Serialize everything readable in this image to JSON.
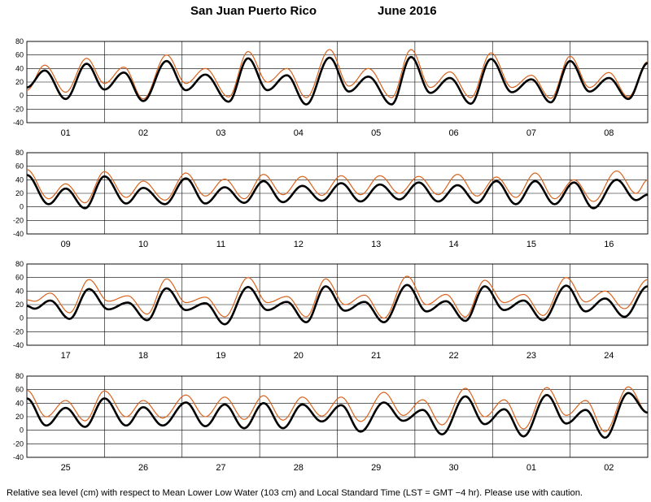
{
  "header": {
    "station": "San Juan Puerto Rico",
    "period": "June   2016"
  },
  "footer": {
    "caption": "Relative sea level (cm) with respect to Mean Lower Low Water (103 cm) and Local Standard Time (LST = GMT −4 hr). Please use with caution."
  },
  "colors": {
    "observed": "#000000",
    "predicted": "#d9631d",
    "grid": "#000000"
  },
  "chart_data": {
    "type": "line",
    "ylim": [
      -40,
      80
    ],
    "yticks": [
      -40,
      -20,
      0,
      20,
      40,
      60,
      80
    ],
    "grid": true,
    "units": "cm",
    "series_styles": [
      {
        "key": "predicted",
        "color": "#d9631d",
        "thickness": "thin"
      },
      {
        "key": "observed",
        "color": "#000000",
        "thickness": "thick"
      }
    ],
    "panels": [
      {
        "days": [
          "01",
          "02",
          "03",
          "04",
          "05",
          "06",
          "07",
          "08"
        ],
        "predicted_extrema": [
          {
            "day": 0.0,
            "v": 8
          },
          {
            "day": 0.23,
            "v": 45
          },
          {
            "day": 0.5,
            "v": 5
          },
          {
            "day": 0.77,
            "v": 55
          },
          {
            "day": 1.0,
            "v": 18
          },
          {
            "day": 1.25,
            "v": 42
          },
          {
            "day": 1.5,
            "v": -5
          },
          {
            "day": 1.8,
            "v": 60
          },
          {
            "day": 2.05,
            "v": 18
          },
          {
            "day": 2.3,
            "v": 40
          },
          {
            "day": 2.6,
            "v": -2
          },
          {
            "day": 2.85,
            "v": 65
          },
          {
            "day": 3.1,
            "v": 20
          },
          {
            "day": 3.35,
            "v": 40
          },
          {
            "day": 3.6,
            "v": -3
          },
          {
            "day": 3.9,
            "v": 68
          },
          {
            "day": 4.15,
            "v": 14
          },
          {
            "day": 4.4,
            "v": 40
          },
          {
            "day": 4.7,
            "v": -3
          },
          {
            "day": 4.95,
            "v": 68
          },
          {
            "day": 5.2,
            "v": 12
          },
          {
            "day": 5.45,
            "v": 35
          },
          {
            "day": 5.72,
            "v": -3
          },
          {
            "day": 5.98,
            "v": 63
          },
          {
            "day": 6.25,
            "v": 12
          },
          {
            "day": 6.5,
            "v": 30
          },
          {
            "day": 6.75,
            "v": -4
          },
          {
            "day": 7.0,
            "v": 58
          },
          {
            "day": 7.25,
            "v": 12
          },
          {
            "day": 7.5,
            "v": 34
          },
          {
            "day": 7.75,
            "v": -2
          },
          {
            "day": 8.0,
            "v": 50
          }
        ],
        "observed_extrema": [
          {
            "day": 0.0,
            "v": 12
          },
          {
            "day": 0.23,
            "v": 37
          },
          {
            "day": 0.5,
            "v": -5
          },
          {
            "day": 0.77,
            "v": 47
          },
          {
            "day": 1.0,
            "v": 9
          },
          {
            "day": 1.25,
            "v": 34
          },
          {
            "day": 1.5,
            "v": -8
          },
          {
            "day": 1.8,
            "v": 51
          },
          {
            "day": 2.05,
            "v": 8
          },
          {
            "day": 2.3,
            "v": 31
          },
          {
            "day": 2.6,
            "v": -9
          },
          {
            "day": 2.85,
            "v": 55
          },
          {
            "day": 3.1,
            "v": 8
          },
          {
            "day": 3.35,
            "v": 30
          },
          {
            "day": 3.6,
            "v": -13
          },
          {
            "day": 3.9,
            "v": 56
          },
          {
            "day": 4.15,
            "v": 6
          },
          {
            "day": 4.4,
            "v": 28
          },
          {
            "day": 4.7,
            "v": -13
          },
          {
            "day": 4.95,
            "v": 57
          },
          {
            "day": 5.2,
            "v": 4
          },
          {
            "day": 5.45,
            "v": 26
          },
          {
            "day": 5.72,
            "v": -12
          },
          {
            "day": 5.98,
            "v": 54
          },
          {
            "day": 6.25,
            "v": 5
          },
          {
            "day": 6.5,
            "v": 24
          },
          {
            "day": 6.75,
            "v": -10
          },
          {
            "day": 7.0,
            "v": 51
          },
          {
            "day": 7.25,
            "v": 6
          },
          {
            "day": 7.5,
            "v": 26
          },
          {
            "day": 7.75,
            "v": -5
          },
          {
            "day": 8.0,
            "v": 48
          }
        ]
      },
      {
        "days": [
          "09",
          "10",
          "11",
          "12",
          "13",
          "14",
          "15",
          "16"
        ],
        "predicted_extrema": [
          {
            "day": 0.0,
            "v": 55
          },
          {
            "day": 0.28,
            "v": 12
          },
          {
            "day": 0.5,
            "v": 34
          },
          {
            "day": 0.75,
            "v": 6
          },
          {
            "day": 1.0,
            "v": 52
          },
          {
            "day": 1.28,
            "v": 14
          },
          {
            "day": 1.5,
            "v": 38
          },
          {
            "day": 1.78,
            "v": 10
          },
          {
            "day": 2.05,
            "v": 50
          },
          {
            "day": 2.3,
            "v": 16
          },
          {
            "day": 2.55,
            "v": 41
          },
          {
            "day": 2.8,
            "v": 12
          },
          {
            "day": 3.05,
            "v": 48
          },
          {
            "day": 3.3,
            "v": 18
          },
          {
            "day": 3.55,
            "v": 45
          },
          {
            "day": 3.8,
            "v": 17
          },
          {
            "day": 4.05,
            "v": 46
          },
          {
            "day": 4.3,
            "v": 18
          },
          {
            "day": 4.55,
            "v": 46
          },
          {
            "day": 4.8,
            "v": 20
          },
          {
            "day": 5.05,
            "v": 45
          },
          {
            "day": 5.3,
            "v": 18
          },
          {
            "day": 5.55,
            "v": 48
          },
          {
            "day": 5.8,
            "v": 16
          },
          {
            "day": 6.05,
            "v": 44
          },
          {
            "day": 6.3,
            "v": 14
          },
          {
            "day": 6.55,
            "v": 50
          },
          {
            "day": 6.8,
            "v": 12
          },
          {
            "day": 7.05,
            "v": 40
          },
          {
            "day": 7.3,
            "v": 8
          },
          {
            "day": 7.6,
            "v": 53
          },
          {
            "day": 7.85,
            "v": 20
          },
          {
            "day": 8.0,
            "v": 40
          }
        ],
        "observed_extrema": [
          {
            "day": 0.0,
            "v": 47
          },
          {
            "day": 0.28,
            "v": 4
          },
          {
            "day": 0.5,
            "v": 27
          },
          {
            "day": 0.75,
            "v": -2
          },
          {
            "day": 1.0,
            "v": 45
          },
          {
            "day": 1.28,
            "v": 5
          },
          {
            "day": 1.5,
            "v": 28
          },
          {
            "day": 1.78,
            "v": 4
          },
          {
            "day": 2.05,
            "v": 42
          },
          {
            "day": 2.3,
            "v": 5
          },
          {
            "day": 2.55,
            "v": 29
          },
          {
            "day": 2.8,
            "v": 6
          },
          {
            "day": 3.05,
            "v": 38
          },
          {
            "day": 3.3,
            "v": 7
          },
          {
            "day": 3.55,
            "v": 31
          },
          {
            "day": 3.8,
            "v": 9
          },
          {
            "day": 4.05,
            "v": 35
          },
          {
            "day": 4.3,
            "v": 8
          },
          {
            "day": 4.55,
            "v": 33
          },
          {
            "day": 4.8,
            "v": 11
          },
          {
            "day": 5.05,
            "v": 36
          },
          {
            "day": 5.3,
            "v": 8
          },
          {
            "day": 5.55,
            "v": 32
          },
          {
            "day": 5.8,
            "v": 6
          },
          {
            "day": 6.05,
            "v": 38
          },
          {
            "day": 6.3,
            "v": 4
          },
          {
            "day": 6.55,
            "v": 38
          },
          {
            "day": 6.8,
            "v": 4
          },
          {
            "day": 7.05,
            "v": 36
          },
          {
            "day": 7.3,
            "v": -2
          },
          {
            "day": 7.6,
            "v": 40
          },
          {
            "day": 7.85,
            "v": 10
          },
          {
            "day": 8.0,
            "v": 18
          }
        ]
      },
      {
        "days": [
          "17",
          "18",
          "19",
          "20",
          "21",
          "22",
          "23",
          "24"
        ],
        "predicted_extrema": [
          {
            "day": 0.0,
            "v": 27
          },
          {
            "day": 0.1,
            "v": 25
          },
          {
            "day": 0.3,
            "v": 37
          },
          {
            "day": 0.55,
            "v": 8
          },
          {
            "day": 0.8,
            "v": 57
          },
          {
            "day": 1.05,
            "v": 25
          },
          {
            "day": 1.3,
            "v": 33
          },
          {
            "day": 1.55,
            "v": 6
          },
          {
            "day": 1.8,
            "v": 58
          },
          {
            "day": 2.05,
            "v": 23
          },
          {
            "day": 2.3,
            "v": 31
          },
          {
            "day": 2.55,
            "v": 2
          },
          {
            "day": 2.85,
            "v": 60
          },
          {
            "day": 3.1,
            "v": 23
          },
          {
            "day": 3.35,
            "v": 32
          },
          {
            "day": 3.6,
            "v": 2
          },
          {
            "day": 3.85,
            "v": 58
          },
          {
            "day": 4.1,
            "v": 20
          },
          {
            "day": 4.35,
            "v": 34
          },
          {
            "day": 4.6,
            "v": 0
          },
          {
            "day": 4.9,
            "v": 62
          },
          {
            "day": 5.15,
            "v": 20
          },
          {
            "day": 5.4,
            "v": 35
          },
          {
            "day": 5.65,
            "v": 2
          },
          {
            "day": 5.9,
            "v": 56
          },
          {
            "day": 6.15,
            "v": 23
          },
          {
            "day": 6.4,
            "v": 35
          },
          {
            "day": 6.65,
            "v": 4
          },
          {
            "day": 6.95,
            "v": 60
          },
          {
            "day": 7.2,
            "v": 24
          },
          {
            "day": 7.45,
            "v": 40
          },
          {
            "day": 7.7,
            "v": 14
          },
          {
            "day": 8.0,
            "v": 57
          }
        ],
        "observed_extrema": [
          {
            "day": 0.0,
            "v": 18
          },
          {
            "day": 0.1,
            "v": 14
          },
          {
            "day": 0.3,
            "v": 26
          },
          {
            "day": 0.55,
            "v": -1
          },
          {
            "day": 0.8,
            "v": 43
          },
          {
            "day": 1.05,
            "v": 13
          },
          {
            "day": 1.3,
            "v": 23
          },
          {
            "day": 1.55,
            "v": -3
          },
          {
            "day": 1.8,
            "v": 44
          },
          {
            "day": 2.05,
            "v": 12
          },
          {
            "day": 2.3,
            "v": 22
          },
          {
            "day": 2.55,
            "v": -9
          },
          {
            "day": 2.85,
            "v": 46
          },
          {
            "day": 3.1,
            "v": 12
          },
          {
            "day": 3.35,
            "v": 24
          },
          {
            "day": 3.6,
            "v": -6
          },
          {
            "day": 3.85,
            "v": 47
          },
          {
            "day": 4.1,
            "v": 11
          },
          {
            "day": 4.35,
            "v": 24
          },
          {
            "day": 4.6,
            "v": -6
          },
          {
            "day": 4.9,
            "v": 49
          },
          {
            "day": 5.15,
            "v": 10
          },
          {
            "day": 5.4,
            "v": 25
          },
          {
            "day": 5.65,
            "v": -4
          },
          {
            "day": 5.9,
            "v": 47
          },
          {
            "day": 6.15,
            "v": 12
          },
          {
            "day": 6.4,
            "v": 26
          },
          {
            "day": 6.65,
            "v": -3
          },
          {
            "day": 6.95,
            "v": 48
          },
          {
            "day": 7.2,
            "v": 10
          },
          {
            "day": 7.45,
            "v": 29
          },
          {
            "day": 7.7,
            "v": 2
          },
          {
            "day": 8.0,
            "v": 47
          }
        ]
      },
      {
        "days": [
          "25",
          "26",
          "27",
          "28",
          "29",
          "30",
          "01",
          "02"
        ],
        "predicted_extrema": [
          {
            "day": 0.0,
            "v": 59
          },
          {
            "day": 0.25,
            "v": 20
          },
          {
            "day": 0.5,
            "v": 44
          },
          {
            "day": 0.75,
            "v": 14
          },
          {
            "day": 1.0,
            "v": 58
          },
          {
            "day": 1.28,
            "v": 20
          },
          {
            "day": 1.5,
            "v": 44
          },
          {
            "day": 1.75,
            "v": 18
          },
          {
            "day": 2.05,
            "v": 52
          },
          {
            "day": 2.3,
            "v": 20
          },
          {
            "day": 2.55,
            "v": 49
          },
          {
            "day": 2.8,
            "v": 16
          },
          {
            "day": 3.05,
            "v": 51
          },
          {
            "day": 3.3,
            "v": 15
          },
          {
            "day": 3.55,
            "v": 49
          },
          {
            "day": 3.8,
            "v": 21
          },
          {
            "day": 4.05,
            "v": 49
          },
          {
            "day": 4.3,
            "v": 13
          },
          {
            "day": 4.6,
            "v": 56
          },
          {
            "day": 4.85,
            "v": 22
          },
          {
            "day": 5.1,
            "v": 45
          },
          {
            "day": 5.35,
            "v": 8
          },
          {
            "day": 5.65,
            "v": 62
          },
          {
            "day": 5.9,
            "v": 20
          },
          {
            "day": 6.15,
            "v": 45
          },
          {
            "day": 6.4,
            "v": 2
          },
          {
            "day": 6.7,
            "v": 63
          },
          {
            "day": 6.95,
            "v": 22
          },
          {
            "day": 7.2,
            "v": 44
          },
          {
            "day": 7.45,
            "v": -2
          },
          {
            "day": 7.75,
            "v": 64
          },
          {
            "day": 8.0,
            "v": 26
          }
        ],
        "observed_extrema": [
          {
            "day": 0.0,
            "v": 47
          },
          {
            "day": 0.25,
            "v": 7
          },
          {
            "day": 0.5,
            "v": 33
          },
          {
            "day": 0.75,
            "v": 5
          },
          {
            "day": 1.0,
            "v": 47
          },
          {
            "day": 1.28,
            "v": 7
          },
          {
            "day": 1.5,
            "v": 34
          },
          {
            "day": 1.75,
            "v": 7
          },
          {
            "day": 2.05,
            "v": 41
          },
          {
            "day": 2.3,
            "v": 6
          },
          {
            "day": 2.55,
            "v": 38
          },
          {
            "day": 2.8,
            "v": 3
          },
          {
            "day": 3.05,
            "v": 40
          },
          {
            "day": 3.3,
            "v": 3
          },
          {
            "day": 3.55,
            "v": 38
          },
          {
            "day": 3.8,
            "v": 13
          },
          {
            "day": 4.05,
            "v": 37
          },
          {
            "day": 4.3,
            "v": -2
          },
          {
            "day": 4.6,
            "v": 41
          },
          {
            "day": 4.85,
            "v": 14
          },
          {
            "day": 5.1,
            "v": 30
          },
          {
            "day": 5.35,
            "v": -6
          },
          {
            "day": 5.65,
            "v": 50
          },
          {
            "day": 5.9,
            "v": 9
          },
          {
            "day": 6.15,
            "v": 31
          },
          {
            "day": 6.4,
            "v": -9
          },
          {
            "day": 6.7,
            "v": 52
          },
          {
            "day": 6.95,
            "v": 10
          },
          {
            "day": 7.2,
            "v": 30
          },
          {
            "day": 7.45,
            "v": -11
          },
          {
            "day": 7.75,
            "v": 55
          },
          {
            "day": 8.0,
            "v": 26
          }
        ]
      }
    ]
  }
}
